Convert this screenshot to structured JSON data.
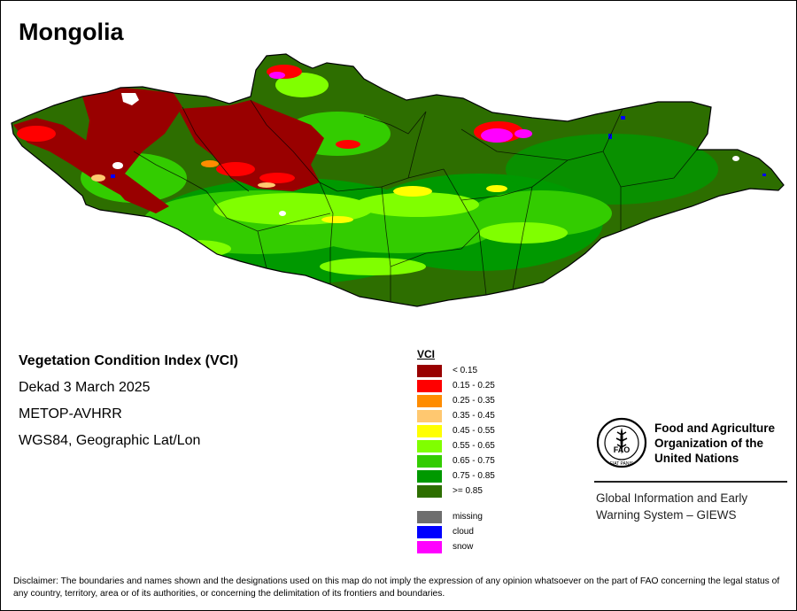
{
  "map": {
    "title": "Mongolia",
    "product": "Vegetation Condition Index (VCI)",
    "period": "Dekad 3 March 2025",
    "sensor": "METOP-AVHRR",
    "projection": "WGS84, Geographic Lat/Lon"
  },
  "legend": {
    "title": "VCI",
    "classes": [
      {
        "label": "< 0.15",
        "color": "#990000"
      },
      {
        "label": "0.15 - 0.25",
        "color": "#ff0000"
      },
      {
        "label": "0.25 - 0.35",
        "color": "#ff8c00"
      },
      {
        "label": "0.35 - 0.45",
        "color": "#ffc870"
      },
      {
        "label": "0.45 - 0.55",
        "color": "#ffff00"
      },
      {
        "label": "0.55 - 0.65",
        "color": "#80ff00"
      },
      {
        "label": "0.65 - 0.75",
        "color": "#33cc00"
      },
      {
        "label": "0.75 - 0.85",
        "color": "#009900"
      },
      {
        "label": ">= 0.85",
        "color": "#2d6e00"
      }
    ],
    "other": [
      {
        "label": "missing",
        "color": "#6e6e6e"
      },
      {
        "label": "cloud",
        "color": "#0000ff"
      },
      {
        "label": "snow",
        "color": "#ff00ff"
      }
    ]
  },
  "org": {
    "name_lines": [
      "Food and Agriculture",
      "Organization of the",
      "United Nations"
    ],
    "logo_text": "FAO",
    "logo_motto": "FIAT PANIS",
    "system_lines": [
      "Global Information and Early",
      "Warning System – GIEWS"
    ]
  },
  "disclaimer": "Disclaimer: The boundaries and names shown and the designations used on this map do not imply the expression of any opinion whatsoever on the part of FAO concerning the legal status of any country, territory, area or of its authorities, or concerning the delimitation of its frontiers and boundaries."
}
